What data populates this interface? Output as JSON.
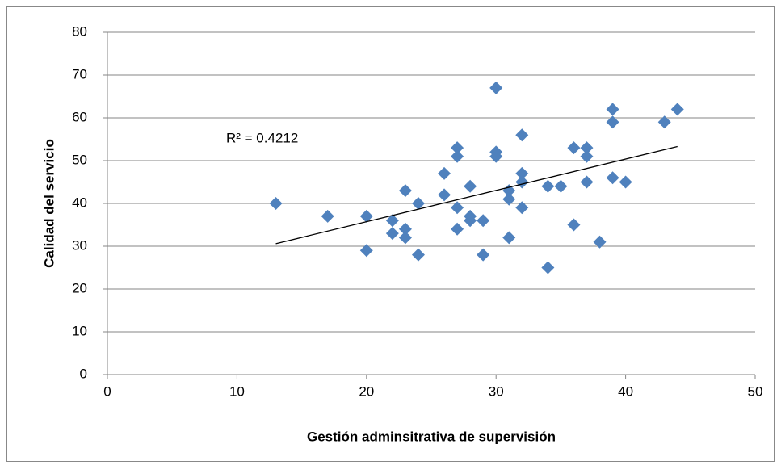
{
  "chart_data": {
    "type": "scatter",
    "x_label": "Gestión adminsitrativa de supervisión",
    "y_label": "Calidad del servicio",
    "x": [
      13,
      17,
      20,
      20,
      22,
      22,
      23,
      23,
      23,
      24,
      24,
      26,
      26,
      27,
      27,
      27,
      27,
      28,
      28,
      28,
      29,
      29,
      30,
      30,
      30,
      31,
      31,
      31,
      32,
      32,
      32,
      32,
      34,
      34,
      35,
      36,
      36,
      37,
      37,
      37,
      38,
      39,
      39,
      39,
      40,
      43,
      44
    ],
    "values": [
      40,
      37,
      37,
      29,
      36,
      33,
      43,
      34,
      32,
      40,
      28,
      47,
      42,
      53,
      51,
      39,
      34,
      44,
      37,
      36,
      36,
      28,
      67,
      52,
      51,
      43,
      41,
      32,
      56,
      47,
      45,
      39,
      44,
      25,
      44,
      53,
      35,
      53,
      51,
      45,
      31,
      62,
      59,
      46,
      45,
      59,
      62
    ],
    "color": "#4f81bd",
    "trendline": {
      "x": [
        13,
        44
      ],
      "y": [
        30.6,
        53.3
      ],
      "color": "#000000",
      "label": "R² = 0.4212"
    },
    "xlim": [
      0,
      50
    ],
    "xticks": [
      0,
      10,
      20,
      30,
      40,
      50
    ],
    "ylim": [
      0,
      80
    ],
    "yticks": [
      0,
      10,
      20,
      30,
      40,
      50,
      60,
      70,
      80
    ],
    "grid": true
  }
}
